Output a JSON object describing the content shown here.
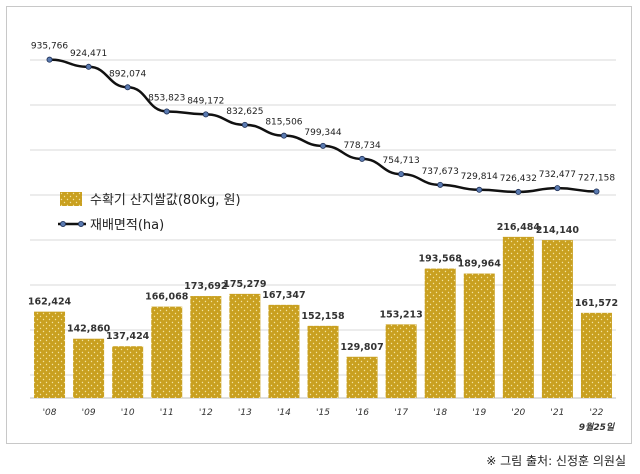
{
  "chart_data": {
    "type": "bar",
    "categories": [
      "'08",
      "'09",
      "'10",
      "'11",
      "'12",
      "'13",
      "'14",
      "'15",
      "'16",
      "'17",
      "'18",
      "'19",
      "'20",
      "'21",
      "'22"
    ],
    "series": [
      {
        "name": "수확기 산지쌀값(80kg, 원)",
        "type": "bar",
        "values": [
          162424,
          142860,
          137424,
          166068,
          173692,
          175279,
          167347,
          152158,
          129807,
          153213,
          193568,
          189964,
          216484,
          214140,
          161572
        ],
        "labels": [
          "162,424",
          "142,860",
          "137,424",
          "166,068",
          "173,692",
          "175,279",
          "167,347",
          "152,158",
          "129,807",
          "153,213",
          "193,568",
          "189,964",
          "216,484",
          "214,140",
          "161,572"
        ],
        "color": "#c9a020"
      },
      {
        "name": "재배면적(ha)",
        "type": "line",
        "values": [
          935766,
          924471,
          892074,
          853823,
          849172,
          832625,
          815506,
          799344,
          778734,
          754713,
          737673,
          729814,
          726432,
          732477,
          727158
        ],
        "labels": [
          "935,766",
          "924,471",
          "892,074",
          "853,823",
          "849,172",
          "832,625",
          "815,506",
          "799,344",
          "778,734",
          "754,713",
          "737,673",
          "729,814",
          "726,432",
          "732,477",
          "727,158"
        ],
        "color": "#111111",
        "marker_color": "#5a7ab0"
      }
    ],
    "last_category_note": "9월25일",
    "grid": true,
    "legend": "middle-left"
  },
  "source_note": "※ 그림 출처: 신정훈 의원실"
}
